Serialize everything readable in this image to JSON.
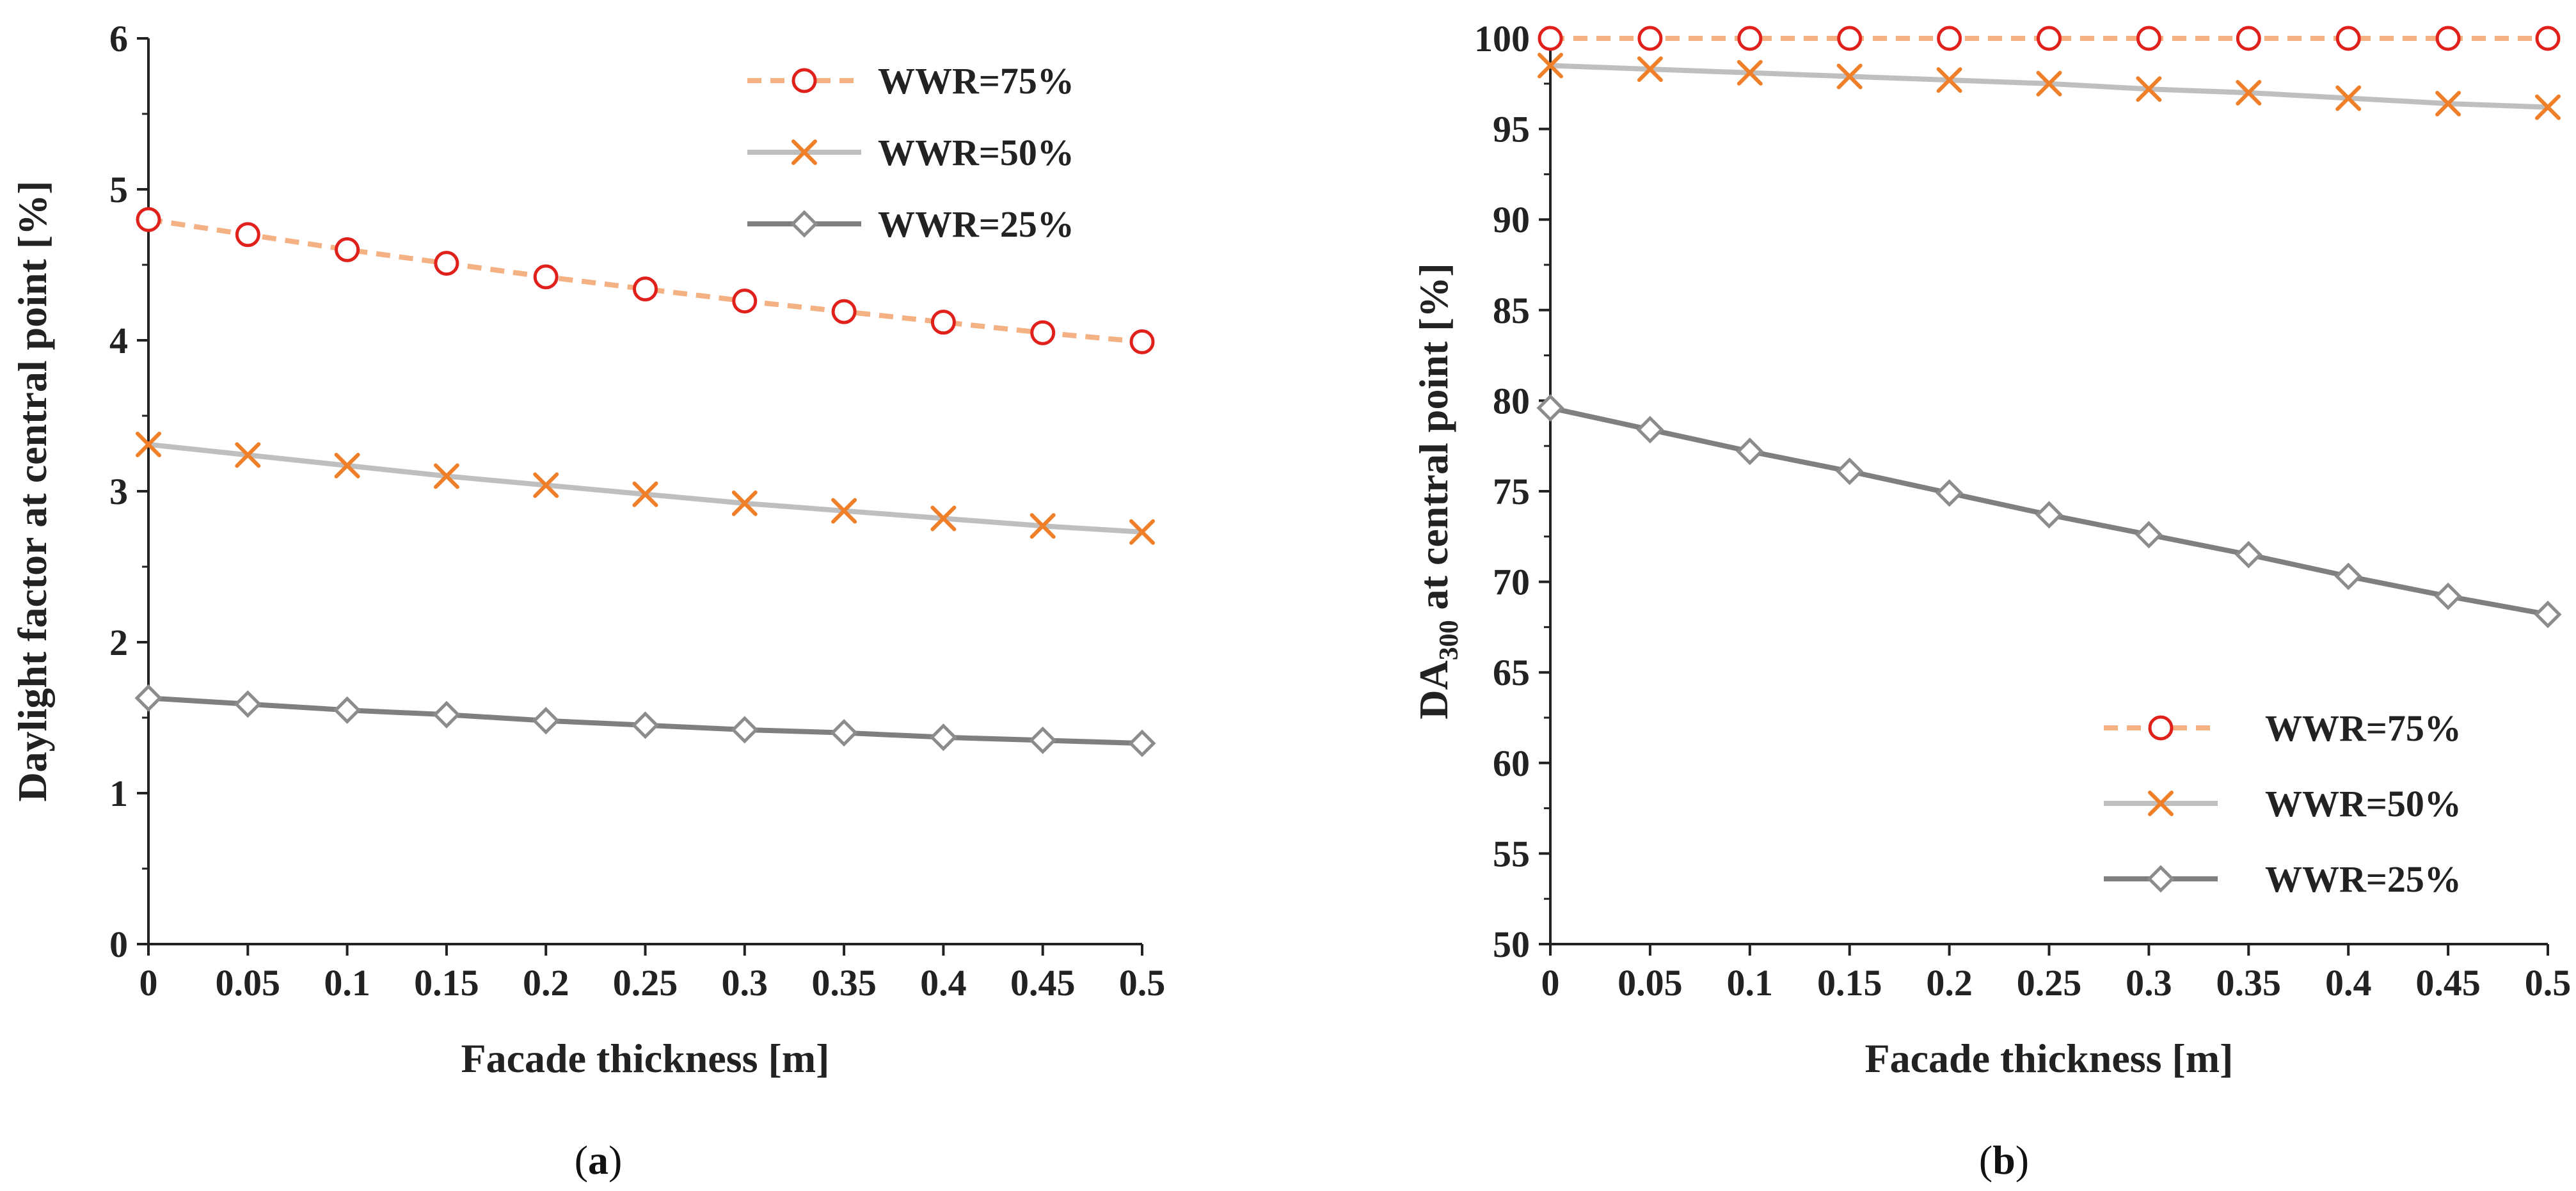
{
  "colors": {
    "wwr75_line": "#f4b183",
    "wwr75_marker": "#e0201b",
    "wwr50_line": "#bfbfbf",
    "wwr50_marker": "#f07f29",
    "wwr25_line": "#7f7f7f",
    "wwr25_marker": "#8c8c8c",
    "axis": "#222222"
  },
  "captions": {
    "a": {
      "open": "(",
      "letter": "a",
      "close": ")"
    },
    "b": {
      "open": "(",
      "letter": "b",
      "close": ")"
    }
  },
  "chart_data": [
    {
      "id": "a",
      "type": "line",
      "title": "",
      "xlabel": "Facade thickness [m]",
      "ylabel": "Daylight factor at central point [%]",
      "ylabel_parts": {
        "main": "Daylight factor at central point [%]",
        "sub": ""
      },
      "x": [
        0,
        0.05,
        0.1,
        0.15,
        0.2,
        0.25,
        0.3,
        0.35,
        0.4,
        0.45,
        0.5
      ],
      "x_tick_labels": [
        "0",
        "0.05",
        "0.1",
        "0.15",
        "0.2",
        "0.25",
        "0.3",
        "0.35",
        "0.4",
        "0.45",
        "0.5"
      ],
      "ylim": [
        0,
        6
      ],
      "y_ticks": [
        0,
        1,
        2,
        3,
        4,
        5,
        6
      ],
      "y_tick_labels": [
        "0",
        "1",
        "2",
        "3",
        "4",
        "5",
        "6"
      ],
      "legend_position": "top-right",
      "series": [
        {
          "name": "WWR=75%",
          "marker": "circle",
          "dashed": true,
          "values": [
            4.8,
            4.7,
            4.6,
            4.51,
            4.42,
            4.34,
            4.26,
            4.19,
            4.12,
            4.05,
            3.99
          ]
        },
        {
          "name": "WWR=50%",
          "marker": "x",
          "dashed": false,
          "values": [
            3.31,
            3.24,
            3.17,
            3.1,
            3.04,
            2.98,
            2.92,
            2.87,
            2.82,
            2.77,
            2.73
          ]
        },
        {
          "name": "WWR=25%",
          "marker": "diamond",
          "dashed": false,
          "values": [
            1.63,
            1.59,
            1.55,
            1.52,
            1.48,
            1.45,
            1.42,
            1.4,
            1.37,
            1.35,
            1.33
          ]
        }
      ]
    },
    {
      "id": "b",
      "type": "line",
      "title": "",
      "xlabel": "Facade thickness [m]",
      "ylabel": "DA300 at central point [%]",
      "ylabel_parts": {
        "main": "DA",
        "sub": "300",
        "rest": " at central point [%]"
      },
      "x": [
        0,
        0.05,
        0.1,
        0.15,
        0.2,
        0.25,
        0.3,
        0.35,
        0.4,
        0.45,
        0.5
      ],
      "x_tick_labels": [
        "0",
        "0.05",
        "0.1",
        "0.15",
        "0.2",
        "0.25",
        "0.3",
        "0.35",
        "0.4",
        "0.45",
        "0.5"
      ],
      "ylim": [
        50,
        100
      ],
      "y_ticks": [
        50,
        55,
        60,
        65,
        70,
        75,
        80,
        85,
        90,
        95,
        100
      ],
      "y_tick_labels": [
        "50",
        "55",
        "60",
        "65",
        "70",
        "75",
        "80",
        "85",
        "90",
        "95",
        "100"
      ],
      "legend_position": "bottom-right",
      "series": [
        {
          "name": "WWR=75%",
          "marker": "circle",
          "dashed": true,
          "values": [
            100,
            100,
            100,
            100,
            100,
            100,
            100,
            100,
            100,
            100,
            100
          ]
        },
        {
          "name": "WWR=50%",
          "marker": "x",
          "dashed": false,
          "values": [
            98.5,
            98.3,
            98.1,
            97.9,
            97.7,
            97.5,
            97.2,
            97.0,
            96.7,
            96.4,
            96.2
          ]
        },
        {
          "name": "WWR=25%",
          "marker": "diamond",
          "dashed": false,
          "values": [
            79.6,
            78.4,
            77.2,
            76.1,
            74.9,
            73.7,
            72.6,
            71.5,
            70.3,
            69.2,
            68.2
          ]
        }
      ]
    }
  ]
}
